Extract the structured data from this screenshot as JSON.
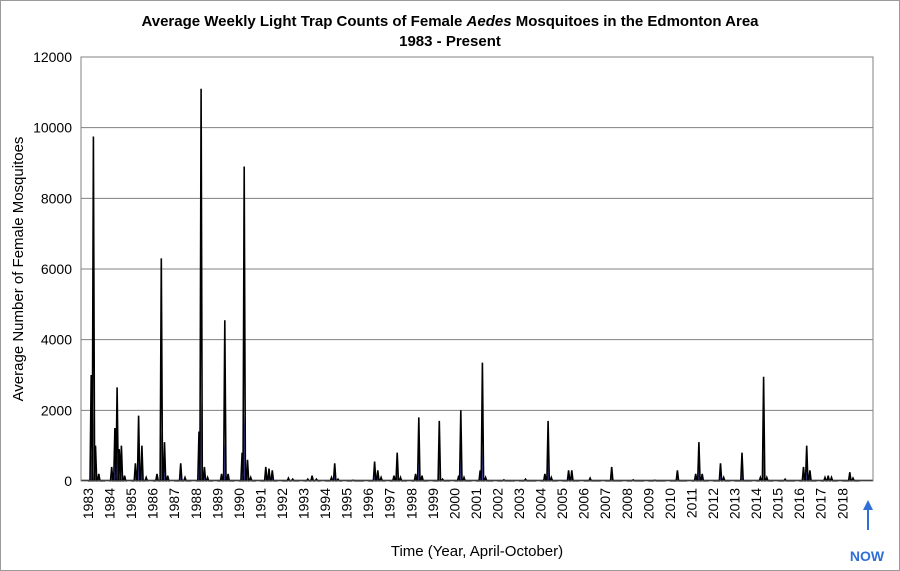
{
  "chart_data": {
    "type": "area",
    "title_line1_pre": "Average Weekly Light Trap Counts of Female ",
    "title_line1_italic": "Aedes",
    "title_line1_post": " Mosquitoes in the Edmonton Area",
    "title_line2": "1983 - Present",
    "xlabel": "Time (Year, April-October)",
    "ylabel": "Average Number of Female  Mosquitoes",
    "ylim": [
      0,
      12000
    ],
    "yticks": [
      "0",
      "2000",
      "4000",
      "6000",
      "8000",
      "10000",
      "12000"
    ],
    "years": [
      "1983",
      "1984",
      "1985",
      "1986",
      "1987",
      "1988",
      "1989",
      "1990",
      "1991",
      "1992",
      "1993",
      "1994",
      "1995",
      "1996",
      "1997",
      "1998",
      "1999",
      "2000",
      "2001",
      "2002",
      "2003",
      "2004",
      "2005",
      "2006",
      "2007",
      "2008",
      "2009",
      "2010",
      "2011",
      "2012",
      "2013",
      "2014",
      "2015",
      "2016",
      "2017",
      "2018"
    ],
    "grid": "horizontal",
    "legend": "none",
    "annotation": "NOW",
    "colors": {
      "line": "#000000",
      "fill": "#5b5bd6",
      "grid": "#808080",
      "now": "#2f6fd6"
    },
    "season_peaks": [
      [
        [
          0.15,
          3000
        ],
        [
          0.25,
          9750
        ],
        [
          0.35,
          1000
        ],
        [
          0.5,
          200
        ]
      ],
      [
        [
          0.1,
          400
        ],
        [
          0.25,
          1500
        ],
        [
          0.35,
          2650
        ],
        [
          0.45,
          900
        ],
        [
          0.55,
          1000
        ],
        [
          0.7,
          150
        ]
      ],
      [
        [
          0.2,
          500
        ],
        [
          0.35,
          1850
        ],
        [
          0.5,
          1000
        ],
        [
          0.7,
          100
        ]
      ],
      [
        [
          0.2,
          200
        ],
        [
          0.4,
          6300
        ],
        [
          0.55,
          1100
        ],
        [
          0.7,
          150
        ]
      ],
      [
        [
          0.3,
          500
        ],
        [
          0.5,
          100
        ]
      ],
      [
        [
          0.15,
          1400
        ],
        [
          0.25,
          11100
        ],
        [
          0.4,
          400
        ],
        [
          0.55,
          100
        ]
      ],
      [
        [
          0.2,
          200
        ],
        [
          0.35,
          4550
        ],
        [
          0.5,
          200
        ]
      ],
      [
        [
          0.15,
          800
        ],
        [
          0.25,
          8900
        ],
        [
          0.4,
          600
        ],
        [
          0.55,
          100
        ]
      ],
      [
        [
          0.25,
          400
        ],
        [
          0.4,
          350
        ],
        [
          0.55,
          300
        ]
      ],
      [
        [
          0.3,
          80
        ],
        [
          0.5,
          50
        ]
      ],
      [
        [
          0.2,
          50
        ],
        [
          0.4,
          150
        ],
        [
          0.6,
          50
        ]
      ],
      [
        [
          0.3,
          100
        ],
        [
          0.45,
          500
        ],
        [
          0.6,
          50
        ]
      ],
      [
        [
          0.3,
          20
        ]
      ],
      [
        [
          0.3,
          550
        ],
        [
          0.45,
          300
        ],
        [
          0.6,
          100
        ]
      ],
      [
        [
          0.2,
          150
        ],
        [
          0.35,
          800
        ],
        [
          0.5,
          100
        ]
      ],
      [
        [
          0.2,
          200
        ],
        [
          0.35,
          1800
        ],
        [
          0.5,
          150
        ]
      ],
      [
        [
          0.3,
          1700
        ],
        [
          0.45,
          50
        ]
      ],
      [
        [
          0.2,
          150
        ],
        [
          0.3,
          2000
        ],
        [
          0.45,
          100
        ]
      ],
      [
        [
          0.2,
          300
        ],
        [
          0.3,
          3350
        ],
        [
          0.45,
          100
        ]
      ],
      [
        [
          0.3,
          30
        ]
      ],
      [
        [
          0.3,
          50
        ]
      ],
      [
        [
          0.2,
          200
        ],
        [
          0.35,
          1700
        ],
        [
          0.5,
          100
        ]
      ],
      [
        [
          0.3,
          300
        ],
        [
          0.45,
          300
        ]
      ],
      [
        [
          0.3,
          80
        ]
      ],
      [
        [
          0.3,
          400
        ]
      ],
      [
        [
          0.3,
          30
        ]
      ],
      [
        [
          0.3,
          20
        ]
      ],
      [
        [
          0.35,
          300
        ]
      ],
      [
        [
          0.2,
          200
        ],
        [
          0.35,
          1100
        ],
        [
          0.5,
          200
        ]
      ],
      [
        [
          0.35,
          500
        ],
        [
          0.5,
          100
        ]
      ],
      [
        [
          0.35,
          800
        ]
      ],
      [
        [
          0.2,
          100
        ],
        [
          0.35,
          2950
        ],
        [
          0.5,
          100
        ]
      ],
      [
        [
          0.35,
          50
        ]
      ],
      [
        [
          0.2,
          400
        ],
        [
          0.35,
          1000
        ],
        [
          0.5,
          300
        ]
      ],
      [
        [
          0.2,
          100
        ],
        [
          0.35,
          150
        ],
        [
          0.5,
          100
        ]
      ],
      [
        [
          0.35,
          250
        ],
        [
          0.5,
          80
        ]
      ]
    ]
  }
}
